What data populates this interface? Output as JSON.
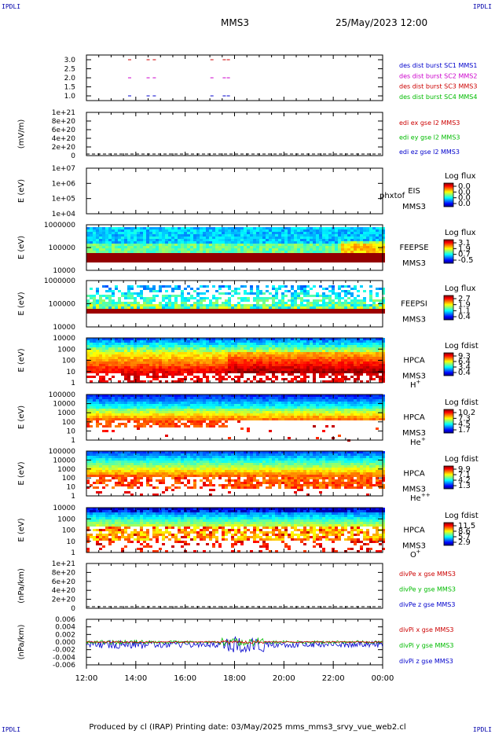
{
  "corners": {
    "tl": "IPDLI",
    "tr": "IPDLI",
    "bl": "IPDLI",
    "br": "IPDLI"
  },
  "header": {
    "title": "MMS3",
    "datetime": "25/May/2023 12:00"
  },
  "footer": {
    "text": "Produced by cl (IRAP)   Printing date: 03/May/2025   mms_mms3_srvy_vue_web2.cl"
  },
  "time_axis": {
    "ticks": [
      "12:00",
      "14:00",
      "16:00",
      "18:00",
      "20:00",
      "22:00",
      "00:00"
    ]
  },
  "colors": {
    "blue": "#0000cc",
    "magenta": "#cc00cc",
    "red": "#cc0000",
    "green": "#00bb00"
  },
  "chart_data": [
    {
      "id": "burst",
      "type": "scatter",
      "ylabel": "",
      "yticks": [
        "3.0",
        "2.5",
        "2.0",
        "1.5",
        "1.0"
      ],
      "legend": [
        {
          "text": "des dist burst SC1 MMS1",
          "color": "#0000cc"
        },
        {
          "text": "des dist burst SC2 MMS2",
          "color": "#cc00cc"
        },
        {
          "text": "des dist burst SC3 MMS3",
          "color": "#cc0000"
        },
        {
          "text": "des dist burst SC4 MMS4",
          "color": "#00bb00"
        }
      ],
      "series": [
        {
          "name": "des dist burst SC1 MMS1",
          "y": 1.0,
          "x": [
            "13:45",
            "14:30",
            "14:45",
            "17:05",
            "17:35",
            "17:45"
          ]
        },
        {
          "name": "des dist burst SC2 MMS2",
          "y": 2.0,
          "x": [
            "13:45",
            "14:30",
            "14:45",
            "17:05",
            "17:35",
            "17:45"
          ]
        },
        {
          "name": "des dist burst SC3 MMS3",
          "y": 3.0,
          "x": [
            "13:45",
            "14:30",
            "14:45",
            "17:05",
            "17:35",
            "17:45"
          ]
        }
      ]
    },
    {
      "id": "edi",
      "type": "line",
      "ylabel": "(mV/m)",
      "yticks": [
        "1e+21",
        "8e+20",
        "6e+20",
        "4e+20",
        "2e+20",
        "0"
      ],
      "legend": [
        {
          "text": "edi ex gse l2 MMS3",
          "color": "#cc0000"
        },
        {
          "text": "edi ey gse l2 MMS3",
          "color": "#00bb00"
        },
        {
          "text": "edi ez gse l2 MMS3",
          "color": "#0000cc"
        }
      ]
    },
    {
      "id": "eis",
      "type": "heatmap",
      "ylabel": "E (eV)",
      "yticks": [
        "1e+07",
        "1e+06",
        "1e+05",
        "1e+04"
      ],
      "labels": [
        "EIS",
        "MMS3"
      ],
      "overlay": "phxtof",
      "cb_title": "Log flux",
      "cb_ticks": [
        "0.0",
        "0.0",
        "0.0",
        "0.0"
      ]
    },
    {
      "id": "feepse",
      "type": "heatmap",
      "ylabel": "E (eV)",
      "yticks": [
        "1000000",
        "100000",
        "10000"
      ],
      "labels": [
        "FEEPSE",
        "MMS3"
      ],
      "cb_title": "Log flux",
      "cb_ticks": [
        "3.1",
        "1.9",
        "0.7",
        "-0.5"
      ]
    },
    {
      "id": "feepsi",
      "type": "heatmap",
      "ylabel": "E (eV)",
      "yticks": [
        "1000000",
        "100000",
        "10000"
      ],
      "labels": [
        "FEEPSI",
        "MMS3"
      ],
      "cb_title": "Log flux",
      "cb_ticks": [
        "2.7",
        "1.9",
        "1.1",
        "0.4"
      ]
    },
    {
      "id": "hpca_h",
      "type": "heatmap",
      "ylabel": "E (eV)",
      "yticks": [
        "10000",
        "1000",
        "100",
        "10",
        "1"
      ],
      "labels": [
        "HPCA",
        "MMS3"
      ],
      "species": "H",
      "sup": "+",
      "cb_title": "Log fdist",
      "cb_ticks": [
        "9.3",
        "6.4",
        "3.4",
        "0.4"
      ]
    },
    {
      "id": "hpca_he",
      "type": "heatmap",
      "ylabel": "E (eV)",
      "yticks": [
        "100000",
        "10000",
        "1000",
        "100",
        "10",
        "1"
      ],
      "labels": [
        "HPCA",
        "MMS3"
      ],
      "species": "He",
      "sup": "+",
      "cb_title": "Log fdist",
      "cb_ticks": [
        "10.2",
        "7.3",
        "4.5",
        "1.7"
      ]
    },
    {
      "id": "hpca_hepp",
      "type": "heatmap",
      "ylabel": "E (eV)",
      "yticks": [
        "100000",
        "10000",
        "1000",
        "100",
        "10",
        "1"
      ],
      "labels": [
        "HPCA",
        "MMS3"
      ],
      "species": "He",
      "sup": "++",
      "cb_title": "Log fdist",
      "cb_ticks": [
        "9.9",
        "7.1",
        "4.2",
        "1.3"
      ]
    },
    {
      "id": "hpca_o",
      "type": "heatmap",
      "ylabel": "E (eV)",
      "yticks": [
        "10000",
        "1000",
        "100",
        "10",
        "1"
      ],
      "labels": [
        "HPCA",
        "MMS3"
      ],
      "species": "O",
      "sup": "+",
      "cb_title": "Log fdist",
      "cb_ticks": [
        "11.5",
        "8.6",
        "5.7",
        "2.9"
      ]
    },
    {
      "id": "divpe",
      "type": "line",
      "ylabel": "(nPa/km)",
      "yticks": [
        "1e+21",
        "8e+20",
        "6e+20",
        "4e+20",
        "2e+20",
        "0"
      ],
      "legend": [
        {
          "text": "divPe x gse MMS3",
          "color": "#cc0000"
        },
        {
          "text": "divPe y gse MMS3",
          "color": "#00bb00"
        },
        {
          "text": "divPe z gse MMS3",
          "color": "#0000cc"
        }
      ]
    },
    {
      "id": "divpi",
      "type": "line",
      "ylabel": "(nPa/km)",
      "yticks": [
        "0.006",
        "0.004",
        "0.002",
        "0.000",
        "-0.002",
        "-0.004",
        "-0.006"
      ],
      "ylim": [
        -0.007,
        0.007
      ],
      "legend": [
        {
          "text": "divPi x gse MMS3",
          "color": "#cc0000"
        },
        {
          "text": "divPi y gse MMS3",
          "color": "#00bb00"
        },
        {
          "text": "divPi z gse MMS3",
          "color": "#0000cc"
        }
      ]
    }
  ]
}
